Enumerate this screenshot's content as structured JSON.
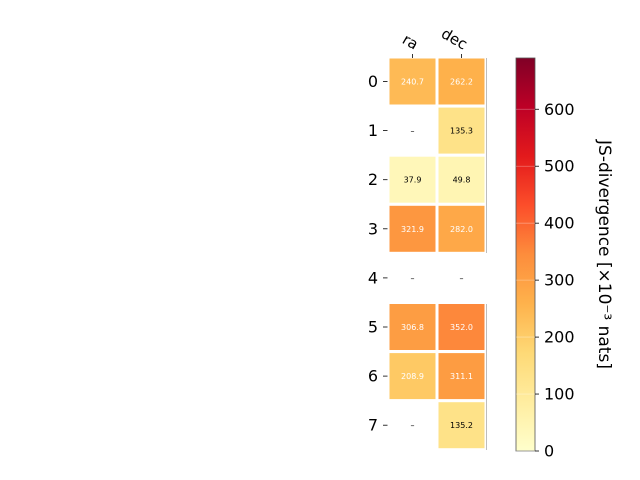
{
  "chart_data": {
    "type": "heatmap",
    "title": "",
    "columns": [
      "ra",
      "dec"
    ],
    "rows": [
      "0",
      "1",
      "2",
      "3",
      "4",
      "5",
      "6",
      "7"
    ],
    "values": [
      [
        240.7,
        262.2
      ],
      [
        null,
        135.3
      ],
      [
        37.9,
        49.8
      ],
      [
        321.9,
        282.0
      ],
      [
        null,
        null
      ],
      [
        306.8,
        352.0
      ],
      [
        208.9,
        311.1
      ],
      [
        null,
        135.2
      ]
    ],
    "cell_labels": [
      [
        "240.7",
        "262.2"
      ],
      [
        "–",
        "135.3"
      ],
      [
        "37.9",
        "49.8"
      ],
      [
        "321.9",
        "282.0"
      ],
      [
        "–",
        "–"
      ],
      [
        "306.8",
        "352.0"
      ],
      [
        "208.9",
        "311.1"
      ],
      [
        "–",
        "135.2"
      ]
    ],
    "missing_label": "–",
    "colorbar": {
      "label": "JS-divergence [×10⁻³ nats]",
      "range": [
        0,
        690
      ],
      "ticks": [
        "0",
        "100",
        "200",
        "300",
        "400",
        "500",
        "600"
      ],
      "tick_values": [
        0,
        100,
        200,
        300,
        400,
        500,
        600
      ],
      "colormap": "YlOrRd",
      "colors": [
        "#ffffcc",
        "#ffeda0",
        "#fed976",
        "#feb24c",
        "#fd8d3c",
        "#fc4e2a",
        "#e31a1c",
        "#bd0026",
        "#800026"
      ]
    },
    "grid": false
  }
}
